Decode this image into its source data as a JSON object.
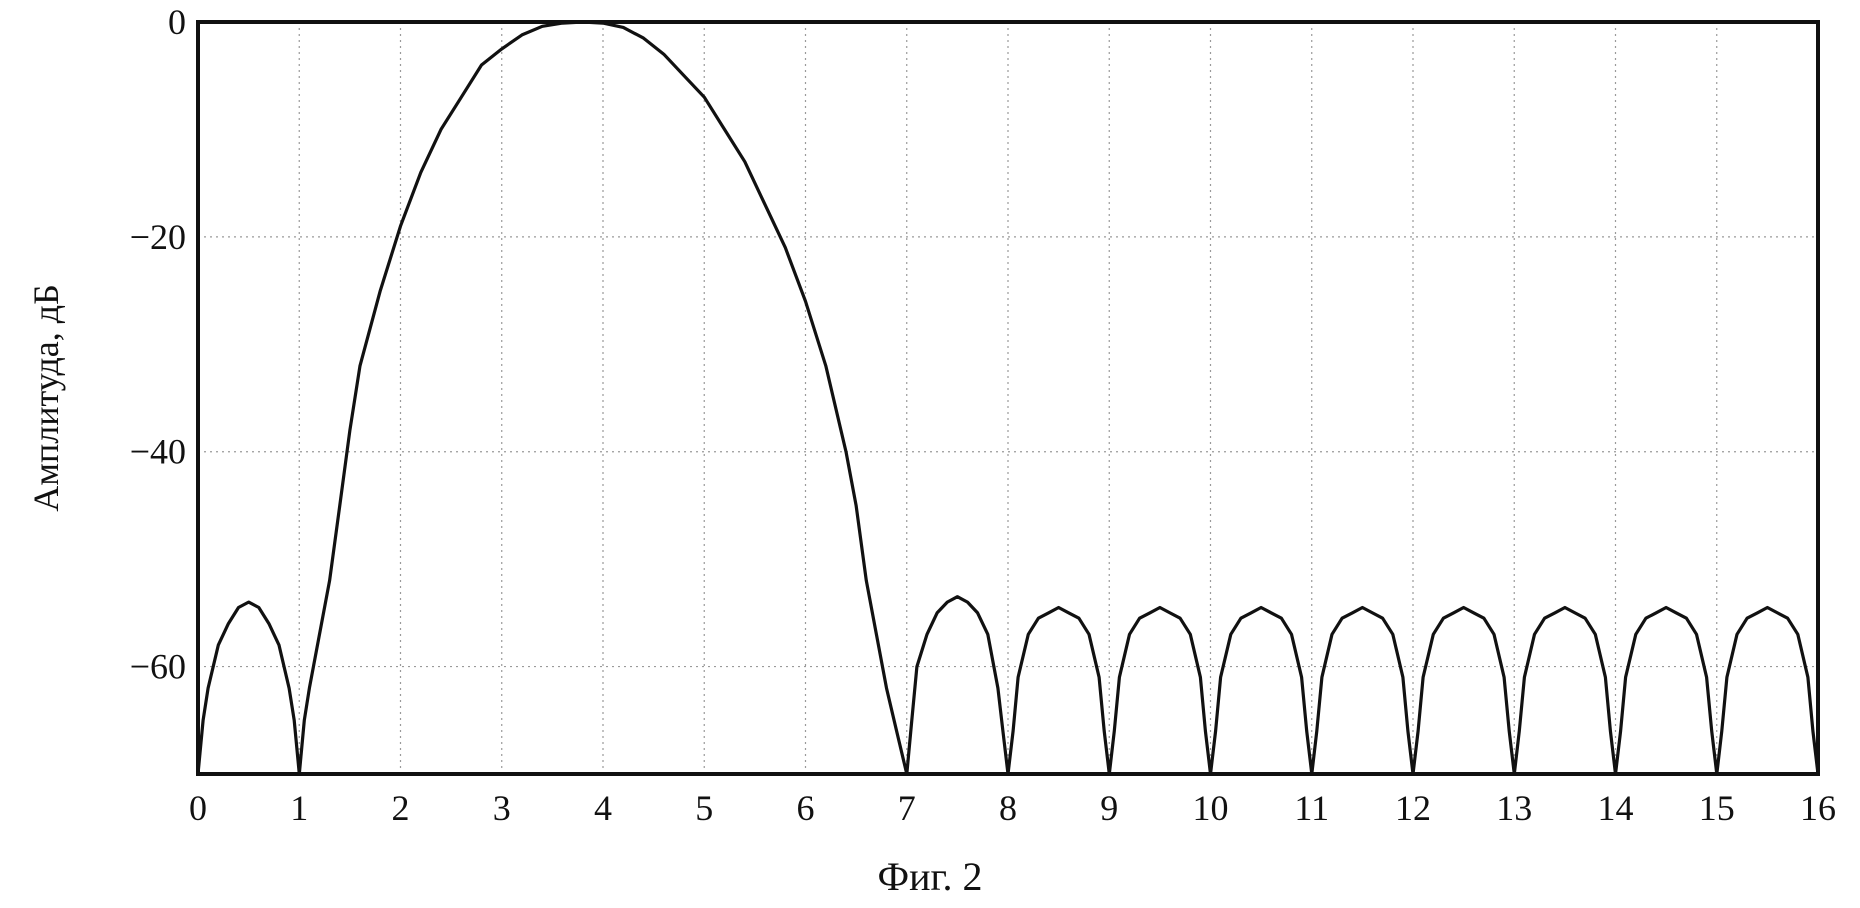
{
  "chart_data": {
    "type": "line",
    "title": "",
    "caption": "Фиг. 2",
    "xlabel": "",
    "ylabel": "Амплитуда, дБ",
    "xlim": [
      0,
      16
    ],
    "ylim": [
      -70,
      0
    ],
    "x_ticks": [
      0,
      1,
      2,
      3,
      4,
      5,
      6,
      7,
      8,
      9,
      10,
      11,
      12,
      13,
      14,
      15,
      16
    ],
    "y_ticks": [
      0,
      -20,
      -40,
      -60
    ],
    "grid": true,
    "series": [
      {
        "values_note_free": true,
        "x": [
          0.0,
          0.05,
          0.1,
          0.2,
          0.3,
          0.4,
          0.5,
          0.6,
          0.7,
          0.8,
          0.9,
          0.95,
          1.0,
          1.05,
          1.1,
          1.2,
          1.3,
          1.4,
          1.5,
          1.6,
          1.8,
          2.0,
          2.2,
          2.4,
          2.6,
          2.8,
          3.0,
          3.2,
          3.4,
          3.6,
          3.8,
          4.0,
          4.2,
          4.4,
          4.6,
          4.8,
          5.0,
          5.2,
          5.4,
          5.6,
          5.8,
          6.0,
          6.2,
          6.4,
          6.5,
          6.6,
          6.7,
          6.8,
          6.9,
          6.95,
          7.0,
          7.05,
          7.1,
          7.2,
          7.3,
          7.4,
          7.5,
          7.6,
          7.7,
          7.8,
          7.9,
          7.95,
          8.0,
          8.05,
          8.1,
          8.2,
          8.3,
          8.4,
          8.5,
          8.6,
          8.7,
          8.8,
          8.9,
          8.95,
          9.0,
          9.05,
          9.1,
          9.2,
          9.3,
          9.4,
          9.5,
          9.6,
          9.7,
          9.8,
          9.9,
          9.95,
          10.0,
          10.05,
          10.1,
          10.2,
          10.3,
          10.4,
          10.5,
          10.6,
          10.7,
          10.8,
          10.9,
          10.95,
          11.0,
          11.05,
          11.1,
          11.2,
          11.3,
          11.4,
          11.5,
          11.6,
          11.7,
          11.8,
          11.9,
          11.95,
          12.0,
          12.05,
          12.1,
          12.2,
          12.3,
          12.4,
          12.5,
          12.6,
          12.7,
          12.8,
          12.9,
          12.95,
          13.0,
          13.05,
          13.1,
          13.2,
          13.3,
          13.4,
          13.5,
          13.6,
          13.7,
          13.8,
          13.9,
          13.95,
          14.0,
          14.05,
          14.1,
          14.2,
          14.3,
          14.4,
          14.5,
          14.6,
          14.7,
          14.8,
          14.9,
          14.95,
          15.0,
          15.05,
          15.1,
          15.2,
          15.3,
          15.4,
          15.5,
          15.6,
          15.7,
          15.8,
          15.9,
          15.95,
          16.0
        ],
        "y": [
          -70,
          -65,
          -62,
          -58,
          -56,
          -54.5,
          -54,
          -54.5,
          -56,
          -58,
          -62,
          -65,
          -70,
          -65,
          -62,
          -57,
          -52,
          -45,
          -38,
          -32,
          -25,
          -19,
          -14,
          -10,
          -7,
          -4,
          -2.5,
          -1.2,
          -0.4,
          -0.1,
          0,
          -0.1,
          -0.5,
          -1.5,
          -3,
          -5,
          -7,
          -10,
          -13,
          -17,
          -21,
          -26,
          -32,
          -40,
          -45,
          -52,
          -57,
          -62,
          -66,
          -68,
          -70,
          -65,
          -60,
          -57,
          -55,
          -54,
          -53.5,
          -54,
          -55,
          -57,
          -62,
          -66,
          -70,
          -66,
          -61,
          -57,
          -55.5,
          -55,
          -54.5,
          -55,
          -55.5,
          -57,
          -61,
          -66,
          -70,
          -66,
          -61,
          -57,
          -55.5,
          -55,
          -54.5,
          -55,
          -55.5,
          -57,
          -61,
          -66,
          -70,
          -66,
          -61,
          -57,
          -55.5,
          -55,
          -54.5,
          -55,
          -55.5,
          -57,
          -61,
          -66,
          -70,
          -66,
          -61,
          -57,
          -55.5,
          -55,
          -54.5,
          -55,
          -55.5,
          -57,
          -61,
          -66,
          -70,
          -66,
          -61,
          -57,
          -55.5,
          -55,
          -54.5,
          -55,
          -55.5,
          -57,
          -61,
          -66,
          -70,
          -66,
          -61,
          -57,
          -55.5,
          -55,
          -54.5,
          -55,
          -55.5,
          -57,
          -61,
          -66,
          -70,
          -66,
          -61,
          -57,
          -55.5,
          -55,
          -54.5,
          -55,
          -55.5,
          -57,
          -61,
          -66,
          -70,
          -66,
          -61,
          -57,
          -55.5,
          -55,
          -54.5,
          -55,
          -55.5,
          -57,
          -61,
          -66,
          -70
        ]
      }
    ]
  }
}
